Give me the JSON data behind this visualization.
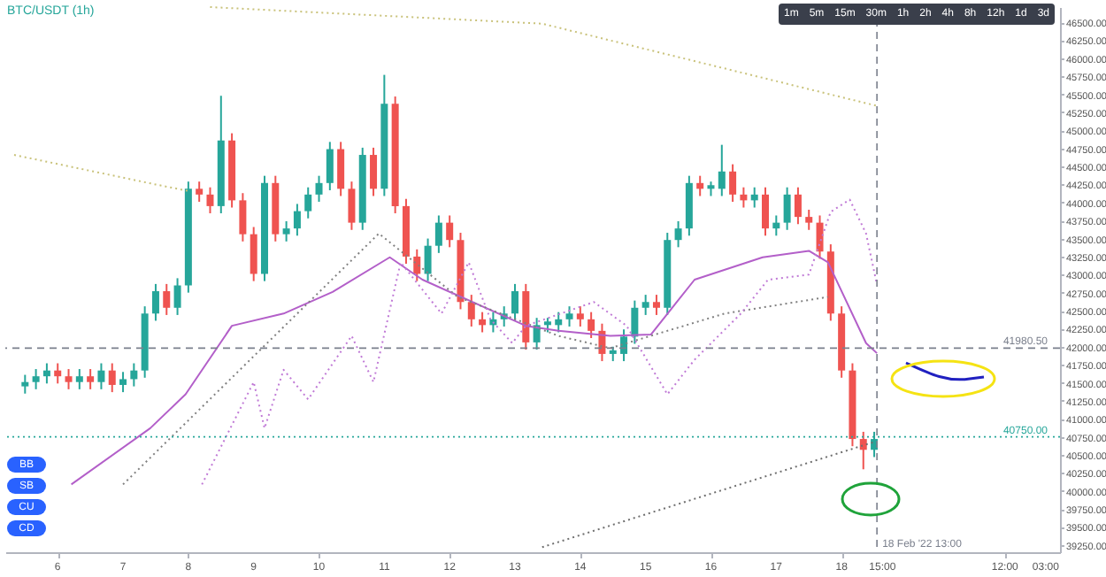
{
  "chart_data": {
    "type": "candlestick",
    "title": "BTC/USDT (1h)",
    "x": [
      "2022-02-05T12:00",
      "2022-02-05T16:00",
      "2022-02-05T20:00",
      "2022-02-06T00:00",
      "2022-02-06T04:00",
      "2022-02-06T08:00",
      "2022-02-06T12:00",
      "2022-02-06T16:00",
      "2022-02-06T20:00",
      "2022-02-07T00:00",
      "2022-02-07T04:00",
      "2022-02-07T08:00",
      "2022-02-07T12:00",
      "2022-02-07T16:00",
      "2022-02-07T20:00",
      "2022-02-08T00:00",
      "2022-02-08T04:00",
      "2022-02-08T08:00",
      "2022-02-08T12:00",
      "2022-02-08T16:00",
      "2022-02-08T20:00",
      "2022-02-09T00:00",
      "2022-02-09T04:00",
      "2022-02-09T08:00",
      "2022-02-09T12:00",
      "2022-02-09T16:00",
      "2022-02-09T20:00",
      "2022-02-10T00:00",
      "2022-02-10T04:00",
      "2022-02-10T08:00",
      "2022-02-10T12:00",
      "2022-02-10T16:00",
      "2022-02-10T20:00",
      "2022-02-11T00:00",
      "2022-02-11T04:00",
      "2022-02-11T08:00",
      "2022-02-11T12:00",
      "2022-02-11T16:00",
      "2022-02-11T20:00",
      "2022-02-12T00:00",
      "2022-02-12T04:00",
      "2022-02-12T08:00",
      "2022-02-12T12:00",
      "2022-02-12T16:00",
      "2022-02-12T20:00",
      "2022-02-13T00:00",
      "2022-02-13T04:00",
      "2022-02-13T08:00",
      "2022-02-13T12:00",
      "2022-02-13T16:00",
      "2022-02-13T20:00",
      "2022-02-14T00:00",
      "2022-02-14T04:00",
      "2022-02-14T08:00",
      "2022-02-14T12:00",
      "2022-02-14T16:00",
      "2022-02-14T20:00",
      "2022-02-15T00:00",
      "2022-02-15T04:00",
      "2022-02-15T08:00",
      "2022-02-15T12:00",
      "2022-02-15T16:00",
      "2022-02-15T20:00",
      "2022-02-16T00:00",
      "2022-02-16T04:00",
      "2022-02-16T08:00",
      "2022-02-16T12:00",
      "2022-02-16T16:00",
      "2022-02-16T20:00",
      "2022-02-17T00:00",
      "2022-02-17T04:00",
      "2022-02-17T08:00",
      "2022-02-17T12:00",
      "2022-02-17T16:00",
      "2022-02-17T20:00",
      "2022-02-18T00:00",
      "2022-02-18T04:00",
      "2022-02-18T08:00",
      "2022-02-18T12:00"
    ],
    "ohlc": [
      [
        41450,
        41610,
        41350,
        41510
      ],
      [
        41510,
        41690,
        41410,
        41590
      ],
      [
        41590,
        41770,
        41490,
        41670
      ],
      [
        41670,
        41770,
        41490,
        41590
      ],
      [
        41590,
        41690,
        41410,
        41510
      ],
      [
        41510,
        41690,
        41410,
        41590
      ],
      [
        41590,
        41690,
        41410,
        41510
      ],
      [
        41510,
        41770,
        41410,
        41670
      ],
      [
        41670,
        41770,
        41370,
        41470
      ],
      [
        41470,
        41650,
        41370,
        41550
      ],
      [
        41550,
        41770,
        41450,
        41670
      ],
      [
        41670,
        42560,
        41570,
        42460
      ],
      [
        42460,
        42870,
        42360,
        42770
      ],
      [
        42770,
        42870,
        42440,
        42540
      ],
      [
        42540,
        42950,
        42440,
        42850
      ],
      [
        42850,
        44290,
        42750,
        44190
      ],
      [
        44190,
        44290,
        44010,
        44110
      ],
      [
        44110,
        44210,
        43850,
        43950
      ],
      [
        43950,
        45480,
        43850,
        44860
      ],
      [
        44860,
        44960,
        43930,
        44030
      ],
      [
        44030,
        44130,
        43460,
        43560
      ],
      [
        43560,
        43660,
        42910,
        43010
      ],
      [
        43010,
        44370,
        42910,
        44270
      ],
      [
        44270,
        44370,
        43460,
        43560
      ],
      [
        43560,
        43740,
        43460,
        43640
      ],
      [
        43640,
        43980,
        43540,
        43880
      ],
      [
        43880,
        44210,
        43780,
        44110
      ],
      [
        44110,
        44370,
        44010,
        44270
      ],
      [
        44270,
        44840,
        44170,
        44740
      ],
      [
        44740,
        44840,
        44090,
        44190
      ],
      [
        44190,
        44290,
        43620,
        43720
      ],
      [
        43720,
        44760,
        43620,
        44660
      ],
      [
        44660,
        44760,
        44090,
        44190
      ],
      [
        44190,
        45770,
        44090,
        45370
      ],
      [
        45370,
        45470,
        43850,
        43950
      ],
      [
        43950,
        44050,
        43150,
        43250
      ],
      [
        43250,
        43350,
        42910,
        43010
      ],
      [
        43010,
        43500,
        42910,
        43400
      ],
      [
        43400,
        43820,
        43300,
        43720
      ],
      [
        43720,
        43820,
        43380,
        43480
      ],
      [
        43480,
        43580,
        42520,
        42620
      ],
      [
        42620,
        42720,
        42280,
        42380
      ],
      [
        42380,
        42480,
        42200,
        42300
      ],
      [
        42300,
        42480,
        42200,
        42380
      ],
      [
        42380,
        42560,
        42280,
        42460
      ],
      [
        42460,
        42870,
        42360,
        42770
      ],
      [
        42770,
        42870,
        41960,
        42060
      ],
      [
        42060,
        42400,
        41960,
        42300
      ],
      [
        42300,
        42400,
        42200,
        42350
      ],
      [
        42300,
        42480,
        42200,
        42380
      ],
      [
        42380,
        42560,
        42280,
        42460
      ],
      [
        42460,
        42560,
        42280,
        42380
      ],
      [
        42380,
        42480,
        42120,
        42220
      ],
      [
        42220,
        42320,
        41800,
        41900
      ],
      [
        41900,
        42000,
        41800,
        41950
      ],
      [
        41900,
        42240,
        41800,
        42140
      ],
      [
        42140,
        42640,
        42040,
        42540
      ],
      [
        42540,
        42720,
        42440,
        42620
      ],
      [
        42620,
        42720,
        42440,
        42540
      ],
      [
        42540,
        43580,
        42440,
        43480
      ],
      [
        43480,
        43740,
        43380,
        43640
      ],
      [
        43640,
        44370,
        43540,
        44270
      ],
      [
        44270,
        44370,
        44090,
        44190
      ],
      [
        44190,
        44290,
        44090,
        44240
      ],
      [
        44190,
        44800,
        44090,
        44430
      ],
      [
        44430,
        44530,
        44010,
        44110
      ],
      [
        44110,
        44210,
        43930,
        44030
      ],
      [
        44030,
        44210,
        43930,
        44110
      ],
      [
        44110,
        44210,
        43540,
        43640
      ],
      [
        43640,
        43820,
        43540,
        43720
      ],
      [
        43720,
        44210,
        43620,
        44110
      ],
      [
        44110,
        44210,
        43700,
        43800
      ],
      [
        43800,
        43900,
        43620,
        43720
      ],
      [
        43720,
        43820,
        43220,
        43320
      ],
      [
        43320,
        43420,
        42360,
        42460
      ],
      [
        42460,
        42560,
        41570,
        41670
      ],
      [
        41670,
        41770,
        40620,
        40720
      ],
      [
        40720,
        40820,
        40300,
        40570
      ],
      [
        40570,
        40820,
        40470,
        40720
      ]
    ],
    "series": [
      {
        "type": "line",
        "color": "#c9c27a",
        "line_style": "dotted",
        "x": [
          "2022-02-08T08:00",
          "2022-02-13T10:00",
          "2022-02-18T13:00"
        ],
        "values": [
          46710,
          46480,
          45340
        ]
      },
      {
        "type": "line",
        "color": "#c9c27a",
        "line_style": "dotted",
        "x": [
          "2022-02-05T08:00",
          "2022-02-07T12:00",
          "2022-02-08T00:00"
        ],
        "values": [
          44660,
          44250,
          44160
        ]
      },
      {
        "type": "line",
        "color": "#b35fc9",
        "line_style": "solid",
        "x": [
          "2022-02-06T05:00",
          "2022-02-07T10:00",
          "2022-02-07T23:00",
          "2022-02-08T16:00",
          "2022-02-09T11:00",
          "2022-02-10T05:00",
          "2022-02-11T02:00",
          "2022-02-11T14:00",
          "2022-02-13T04:00",
          "2022-02-13T16:00",
          "2022-02-14T11:00",
          "2022-02-15T02:00",
          "2022-02-15T18:00",
          "2022-02-16T19:00",
          "2022-02-17T12:00",
          "2022-02-17T19:00",
          "2022-02-18T09:00",
          "2022-02-18T13:00"
        ],
        "values": [
          40090,
          40870,
          41340,
          42290,
          42460,
          42760,
          43240,
          42930,
          42290,
          42220,
          42150,
          42170,
          42930,
          43240,
          43330,
          43170,
          42050,
          41910
        ]
      },
      {
        "type": "line",
        "color": "#808080",
        "line_style": "dotted",
        "x": [
          "2022-02-07T00:00",
          "2022-02-10T22:00",
          "2022-02-12T03:00",
          "2022-02-13T16:00",
          "2022-02-14T11:00",
          "2022-02-16T05:00",
          "2022-02-17T19:00"
        ],
        "values": [
          40090,
          43570,
          42690,
          42150,
          41980,
          42460,
          42690
        ]
      },
      {
        "type": "line",
        "color": "#6e6e6e",
        "line_style": "dotted",
        "x": [
          "2022-02-13T10:00",
          "2022-02-18T12:00"
        ],
        "values": [
          39220,
          40680
        ]
      },
      {
        "type": "line",
        "color": "#c07ad6",
        "line_style": "dotted",
        "x": [
          "2022-02-08T05:00",
          "2022-02-09T00:00",
          "2022-02-09T04:00",
          "2022-02-09T11:00",
          "2022-02-09T20:00",
          "2022-02-10T12:00",
          "2022-02-10T20:00",
          "2022-02-11T06:00",
          "2022-02-11T21:00",
          "2022-02-12T07:00",
          "2022-02-12T15:00",
          "2022-02-12T23:00",
          "2022-02-13T04:00",
          "2022-02-14T05:00",
          "2022-02-14T17:00",
          "2022-02-15T08:00",
          "2022-02-15T18:00",
          "2022-02-16T11:00",
          "2022-02-16T21:00",
          "2022-02-17T12:00",
          "2022-02-17T20:00",
          "2022-02-18T03:00",
          "2022-02-18T09:00",
          "2022-02-18T13:00"
        ],
        "values": [
          40090,
          41510,
          40870,
          41680,
          41270,
          42150,
          41510,
          43170,
          42460,
          43170,
          42380,
          42050,
          42290,
          42620,
          42290,
          41340,
          41820,
          42460,
          42930,
          43000,
          43870,
          44040,
          43570,
          42860
        ]
      }
    ],
    "xlim": [
      "2022-02-05T08:00",
      "2022-02-21T05:00"
    ],
    "xticks": [
      {
        "value": "2022-02-06",
        "label": "6"
      },
      {
        "value": "2022-02-07",
        "label": "7"
      },
      {
        "value": "2022-02-08",
        "label": "8"
      },
      {
        "value": "2022-02-09",
        "label": "9"
      },
      {
        "value": "2022-02-10",
        "label": "10"
      },
      {
        "value": "2022-02-11",
        "label": "11"
      },
      {
        "value": "2022-02-12",
        "label": "12"
      },
      {
        "value": "2022-02-13",
        "label": "13"
      },
      {
        "value": "2022-02-14",
        "label": "14"
      },
      {
        "value": "2022-02-15",
        "label": "15"
      },
      {
        "value": "2022-02-16",
        "label": "16"
      },
      {
        "value": "2022-02-17",
        "label": "17"
      },
      {
        "value": "2022-02-18",
        "label": "18"
      },
      {
        "value": "2022-02-18T15:00",
        "label": "15:00"
      },
      {
        "value": "2022-02-20T12:00",
        "label": "12:00"
      },
      {
        "value": "2022-02-21T03:00",
        "label": "03:00"
      }
    ],
    "ylim": [
      39150,
      46710
    ],
    "yticks": [
      {
        "value": 39250,
        "label": "39250.00"
      },
      {
        "value": 39500,
        "label": "39500.00"
      },
      {
        "value": 39750,
        "label": "39750.00"
      },
      {
        "value": 40000,
        "label": "40000.00"
      },
      {
        "value": 40250,
        "label": "40250.00"
      },
      {
        "value": 40500,
        "label": "40500.00"
      },
      {
        "value": 40750,
        "label": "40750.00"
      },
      {
        "value": 41000,
        "label": "41000.00"
      },
      {
        "value": 41250,
        "label": "41250.00"
      },
      {
        "value": 41500,
        "label": "41500.00"
      },
      {
        "value": 41750,
        "label": "41750.00"
      },
      {
        "value": 42000,
        "label": "42000.00"
      },
      {
        "value": 42250,
        "label": "42250.00"
      },
      {
        "value": 42500,
        "label": "42500.00"
      },
      {
        "value": 42750,
        "label": "42750.00"
      },
      {
        "value": 43000,
        "label": "43000.00"
      },
      {
        "value": 43250,
        "label": "43250.00"
      },
      {
        "value": 43500,
        "label": "43500.00"
      },
      {
        "value": 43750,
        "label": "43750.00"
      },
      {
        "value": 44000,
        "label": "44000.00"
      },
      {
        "value": 44250,
        "label": "44250.00"
      },
      {
        "value": 44500,
        "label": "44500.00"
      },
      {
        "value": 44750,
        "label": "44750.00"
      },
      {
        "value": 45000,
        "label": "45000.00"
      },
      {
        "value": 45250,
        "label": "45250.00"
      },
      {
        "value": 45500,
        "label": "45500.00"
      },
      {
        "value": 45750,
        "label": "45750.00"
      },
      {
        "value": 46000,
        "label": "46000.00"
      },
      {
        "value": 46250,
        "label": "46250.00"
      },
      {
        "value": 46500,
        "label": "46500.00"
      }
    ],
    "ref_lines": [
      {
        "axis": "y",
        "value": 41980.5,
        "label": "41980.50",
        "color": "#7a7f8c",
        "line_style": "dashed"
      },
      {
        "axis": "y",
        "value": 40750,
        "label": "40750.00",
        "color": "#26a69a",
        "line_style": "dotted"
      },
      {
        "axis": "x",
        "value": "2022-02-18T13:00",
        "label": "18 Feb '22 13:00",
        "color": "#7a7f8c",
        "line_style": "dashed"
      }
    ],
    "annotations": [
      "1m 5m 15m 30m 1h 2h 4h 8h 12h 1d 3d",
      "BB",
      "SB",
      "CU",
      "CD"
    ]
  }
}
